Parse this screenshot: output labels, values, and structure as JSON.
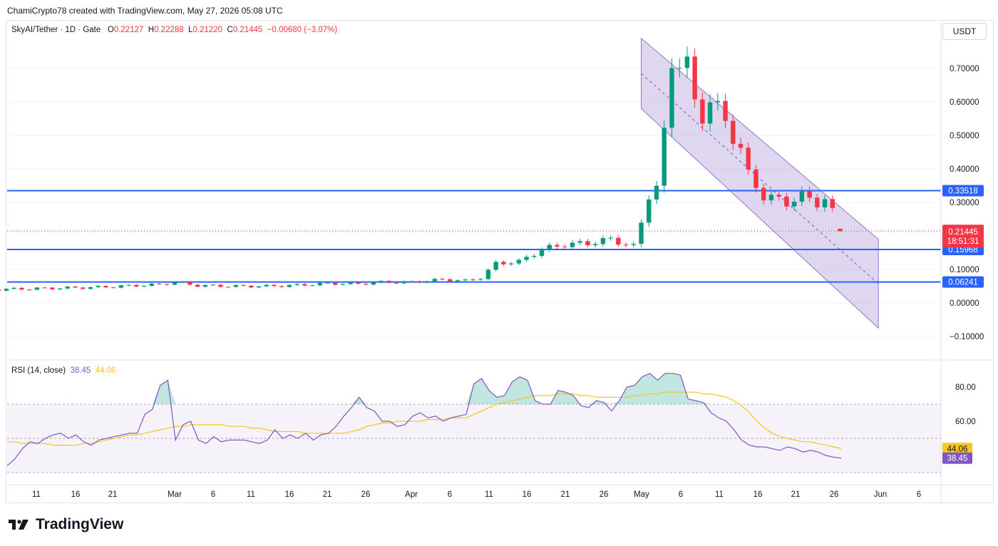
{
  "header": {
    "credit": "ChamiCrypto78 created with TradingView.com, May 27, 2026 05:08 UTC"
  },
  "legend": {
    "symbol": "SkyAI/Tether · 1D · Gate",
    "o_label": "O",
    "o_value": "0.22127",
    "h_label": "H",
    "h_value": "0.22288",
    "l_label": "L",
    "l_value": "0.21220",
    "c_label": "C",
    "c_value": "0.21445",
    "change": "−0.00680 (−3.07%)"
  },
  "currency_button": "USDT",
  "rsi_legend": {
    "label": "RSI (14, close)",
    "rsi_value": "38.45",
    "ma_value": "44.06"
  },
  "brand": {
    "logo": "𝟭𝟳",
    "name": "TradingView"
  },
  "colors": {
    "up": "#089981",
    "down": "#f23645",
    "level_line": "#2962ff",
    "channel_fill": "#b39ddb",
    "rsi_line": "#7e57c2",
    "rsi_ma": "#f7c51e"
  },
  "chart_data": {
    "type": "candlestick",
    "title": "SkyAI/Tether · 1D · Gate",
    "y_ticks": [
      "0.70000",
      "0.60000",
      "0.50000",
      "0.40000",
      "0.30000",
      "0.10000",
      "0.00000",
      "−0.10000"
    ],
    "y_tick_values": [
      0.7,
      0.6,
      0.5,
      0.4,
      0.3,
      0.1,
      0.0,
      -0.1
    ],
    "x_ticks": [
      "11",
      "16",
      "21",
      "Mar",
      "6",
      "11",
      "16",
      "21",
      "26",
      "Apr",
      "6",
      "11",
      "16",
      "21",
      "26",
      "May",
      "6",
      "11",
      "16",
      "21",
      "26",
      "Jun",
      "6"
    ],
    "ylim": [
      -0.13,
      0.82
    ],
    "levels": [
      {
        "value": 0.33518,
        "label": "0.33518"
      },
      {
        "value": 0.15968,
        "label": "0.15968"
      },
      {
        "value": 0.06241,
        "label": "0.06241"
      }
    ],
    "last_price": {
      "value": 0.21445,
      "label": "0.21445",
      "countdown": "18:51:31"
    },
    "channel": {
      "upper_start": [
        "May 1",
        0.79
      ],
      "upper_end": [
        "Jun 1",
        0.19
      ],
      "lower_start": [
        "May 1",
        0.58
      ],
      "lower_end": [
        "Jun 1",
        -0.075
      ]
    },
    "ohlc_recent": [
      {
        "d": "Mar 29",
        "o": 0.06,
        "h": 0.065,
        "l": 0.057,
        "c": 0.062
      },
      {
        "d": "Apr 4",
        "o": 0.062,
        "h": 0.085,
        "l": 0.058,
        "c": 0.075
      },
      {
        "d": "Apr 10",
        "o": 0.068,
        "h": 0.135,
        "l": 0.066,
        "c": 0.125
      },
      {
        "d": "Apr 16",
        "o": 0.13,
        "h": 0.19,
        "l": 0.12,
        "c": 0.175
      },
      {
        "d": "Apr 20",
        "o": 0.17,
        "h": 0.18,
        "l": 0.07,
        "c": 0.16
      },
      {
        "d": "Apr 24",
        "o": 0.19,
        "h": 0.22,
        "l": 0.17,
        "c": 0.175
      },
      {
        "d": "Apr 28",
        "o": 0.165,
        "h": 0.215,
        "l": 0.16,
        "c": 0.21
      },
      {
        "d": "Apr 30",
        "o": 0.29,
        "h": 0.36,
        "l": 0.285,
        "c": 0.345
      },
      {
        "d": "May 3",
        "o": 0.45,
        "h": 0.53,
        "l": 0.34,
        "c": 0.5
      },
      {
        "d": "May 4",
        "o": 0.46,
        "h": 0.79,
        "l": 0.45,
        "c": 0.72
      },
      {
        "d": "May 6",
        "o": 0.73,
        "h": 0.84,
        "l": 0.65,
        "c": 0.71
      },
      {
        "d": "May 8",
        "o": 0.62,
        "h": 0.7,
        "l": 0.55,
        "c": 0.56
      },
      {
        "d": "May 11",
        "o": 0.54,
        "h": 0.6,
        "l": 0.35,
        "c": 0.46
      },
      {
        "d": "May 14",
        "o": 0.45,
        "h": 0.47,
        "l": 0.34,
        "c": 0.38
      },
      {
        "d": "May 17",
        "o": 0.33,
        "h": 0.35,
        "l": 0.29,
        "c": 0.31
      },
      {
        "d": "May 21",
        "o": 0.32,
        "h": 0.36,
        "l": 0.27,
        "c": 0.29
      },
      {
        "d": "May 24",
        "o": 0.33,
        "h": 0.345,
        "l": 0.28,
        "c": 0.27
      },
      {
        "d": "May 26",
        "o": 0.27,
        "h": 0.28,
        "l": 0.21,
        "c": 0.221
      },
      {
        "d": "May 27",
        "o": 0.22127,
        "h": 0.22288,
        "l": 0.2122,
        "c": 0.21445
      }
    ],
    "rsi": {
      "label": "RSI (14, close)",
      "y_ticks": [
        "80.00",
        "60.00"
      ],
      "y_tick_values": [
        80,
        60
      ],
      "bands": [
        70,
        50,
        30
      ],
      "ylim": [
        22,
        96
      ],
      "values": [
        34,
        38,
        44,
        48,
        47,
        50,
        52,
        53,
        50,
        52,
        48,
        46,
        49,
        50,
        51,
        52,
        53,
        53,
        64,
        67,
        81,
        84,
        49,
        58,
        60,
        49,
        47,
        51,
        48,
        49,
        49,
        49,
        48,
        47,
        49,
        55,
        50,
        52,
        50,
        53,
        49,
        52,
        53,
        57,
        63,
        68,
        74,
        68,
        66,
        60,
        60,
        57,
        58,
        63,
        65,
        62,
        63,
        60,
        62,
        63,
        64,
        82,
        85,
        78,
        74,
        75,
        83,
        86,
        84,
        72,
        70,
        70,
        78,
        77,
        75,
        69,
        68,
        72,
        71,
        66,
        72,
        80,
        81,
        86,
        88,
        84,
        88,
        88,
        87,
        73,
        72,
        71,
        65,
        62,
        60,
        55,
        49,
        46,
        45,
        45,
        44,
        43,
        45,
        44,
        42,
        43,
        42,
        40,
        39,
        38.45
      ],
      "ma_values": [
        48,
        48,
        47,
        47,
        47,
        47,
        46,
        46,
        46,
        46,
        47,
        47,
        48,
        49,
        50,
        51,
        52,
        52,
        53,
        54,
        55,
        56,
        57,
        57,
        58,
        58,
        58,
        58,
        58,
        57,
        57,
        57,
        56,
        56,
        55,
        54,
        54,
        54,
        54,
        53,
        53,
        53,
        53,
        53,
        53,
        54,
        55,
        57,
        58,
        59,
        59,
        60,
        60,
        60,
        60,
        61,
        61,
        61,
        62,
        62,
        62,
        64,
        66,
        68,
        70,
        71,
        72,
        73,
        74,
        75,
        75,
        75,
        76,
        76,
        76,
        75,
        75,
        74,
        74,
        74,
        74,
        74,
        75,
        75,
        76,
        76,
        77,
        77,
        77,
        77,
        77,
        76,
        76,
        75,
        74,
        72,
        69,
        65,
        60,
        56,
        53,
        51,
        50,
        49,
        48,
        48,
        47,
        46,
        45,
        44.06
      ],
      "current": {
        "rsi": "38.45",
        "ma": "44.06"
      }
    }
  }
}
